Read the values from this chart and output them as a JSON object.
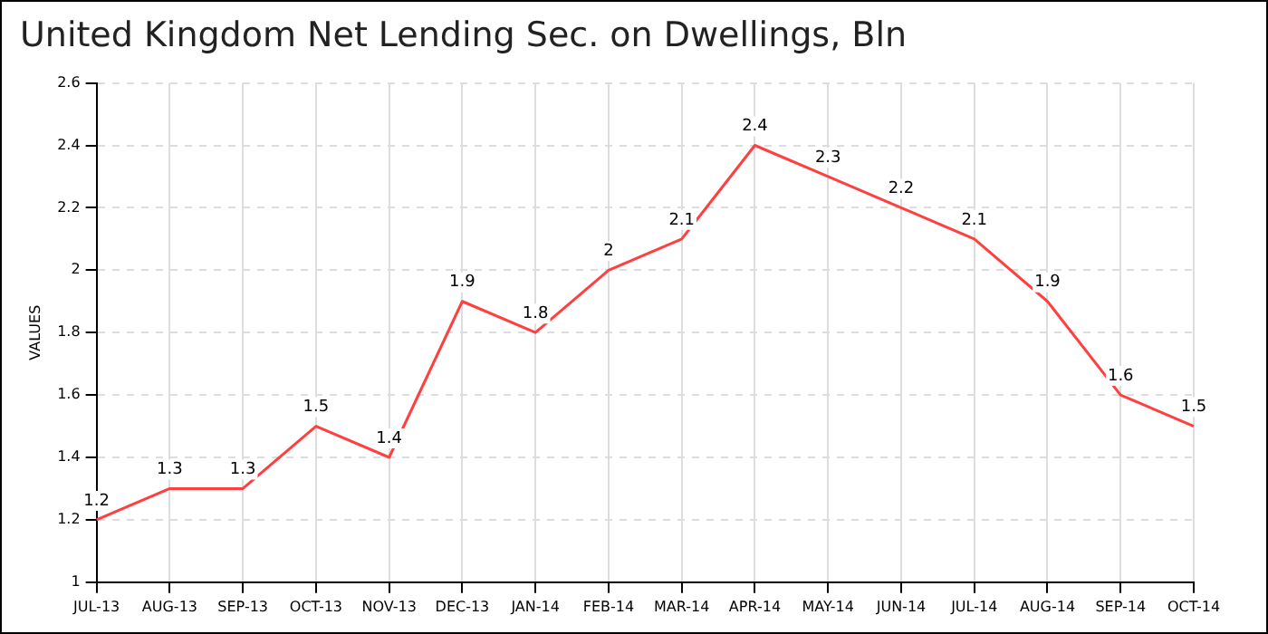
{
  "chart_data": {
    "type": "line",
    "title": "United Kingdom Net Lending Sec. on Dwellings, Bln",
    "ylabel": "VALUES",
    "categories": [
      "JUL-13",
      "AUG-13",
      "SEP-13",
      "OCT-13",
      "NOV-13",
      "DEC-13",
      "JAN-14",
      "FEB-14",
      "MAR-14",
      "APR-14",
      "MAY-14",
      "JUN-14",
      "JUL-14",
      "AUG-14",
      "SEP-14",
      "OCT-14"
    ],
    "series": [
      {
        "color": "#ff4040",
        "values": [
          1.2,
          1.3,
          1.3,
          1.5,
          1.4,
          1.9,
          1.8,
          2,
          2.1,
          2.4,
          2.3,
          2.2,
          2.1,
          1.9,
          1.6,
          1.5
        ]
      }
    ],
    "ylim": [
      1,
      2.6
    ],
    "yticks": [
      1,
      1.2,
      1.4,
      1.6,
      1.8,
      2,
      2.2,
      2.4,
      2.6
    ],
    "grid": true,
    "line_style": "solid",
    "marker": "none",
    "data_labels": true,
    "legend": false
  }
}
